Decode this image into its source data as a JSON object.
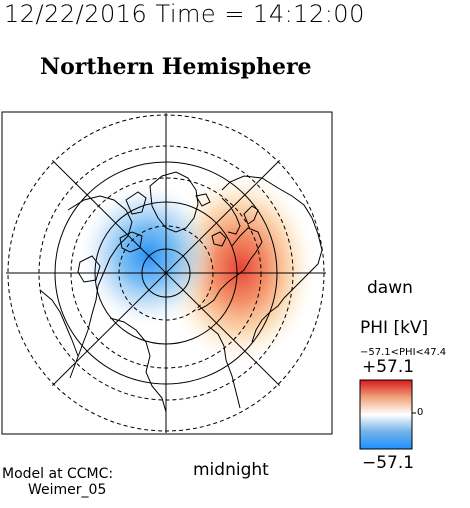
{
  "timestamp": "12/22/2016 Time = 14:12:00",
  "title": "Northern Hemisphere",
  "labels": {
    "dawn": "dawn",
    "midnight": "midnight",
    "model_line1": "Model at CCMC:",
    "model_line2": "Weimer_05"
  },
  "colorbar": {
    "title": "PHI [kV]",
    "range_text": "−57.1<PHI<47.4",
    "max_label": "+57.1",
    "zero_label": "0",
    "min_label": "−57.1",
    "colors": [
      "#d7191c",
      "#f0a27a",
      "#ffffff",
      "#74b3e8",
      "#1e90ff"
    ]
  },
  "potential": {
    "dusk_min_kv": -57.1,
    "dawn_max_kv": 47.4,
    "positive_color": "#e8553e",
    "negative_color": "#2b8ff0"
  }
}
